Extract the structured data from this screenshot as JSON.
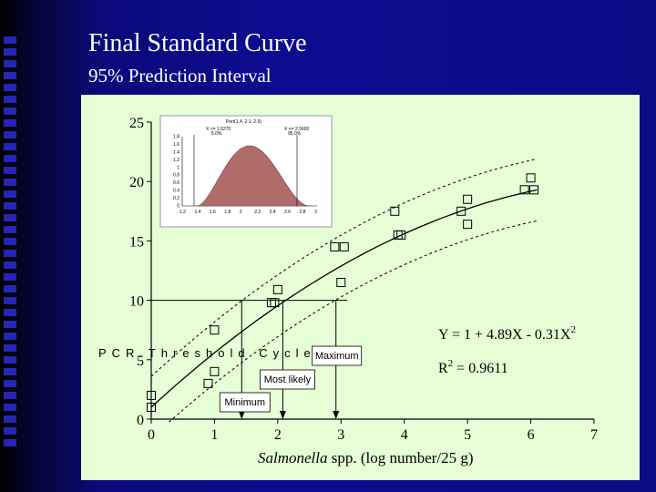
{
  "slide": {
    "title": "Final Standard Curve",
    "subtitle": "95% Prediction Interval"
  },
  "chart_data": {
    "type": "scatter",
    "x_ticks": [
      "0",
      "1",
      "2",
      "3",
      "4",
      "5",
      "6",
      "7"
    ],
    "y_ticks": [
      "0",
      "5",
      "10",
      "15",
      "20",
      "25"
    ],
    "xlim": [
      0,
      7
    ],
    "ylim": [
      0,
      25
    ],
    "xlabel_italic": "Salmonella",
    "xlabel_rest": " spp. (log number/25 g)",
    "ylabel": "PCR Threshold Cycle",
    "grid": false,
    "points": [
      [
        0,
        1
      ],
      [
        0,
        2
      ],
      [
        0.9,
        3
      ],
      [
        1.0,
        4
      ],
      [
        1.0,
        7.5
      ],
      [
        1.9,
        9.8
      ],
      [
        1.95,
        9.8
      ],
      [
        2.0,
        10.9
      ],
      [
        2.9,
        14.5
      ],
      [
        3.0,
        11.5
      ],
      [
        3.05,
        14.5
      ],
      [
        3.85,
        17.5
      ],
      [
        3.9,
        15.5
      ],
      [
        3.95,
        15.5
      ],
      [
        4.9,
        17.5
      ],
      [
        5.0,
        18.5
      ],
      [
        5.0,
        16.4
      ],
      [
        5.9,
        19.3
      ],
      [
        6.0,
        20.3
      ],
      [
        6.05,
        19.3
      ]
    ],
    "fit": {
      "a": 1,
      "b": 4.89,
      "c": -0.31
    },
    "equation_text": "Y = 1 + 4.89X - 0.31X",
    "equation_sup": "2",
    "r2_text_prefix": "R",
    "r2_sup": "2",
    "r2_text_value": " = 0.9611",
    "prediction": [
      {
        "label": "Minimum",
        "x": 1.43
      },
      {
        "label": "Most likely",
        "x": 2.08
      },
      {
        "label": "Maximum",
        "x": 2.92
      }
    ],
    "reference_y": 10,
    "inset": {
      "title": "Pert(1.4, 2.1, 2.9)",
      "left_value": "X <= 1.5270",
      "left_pct": "5.0%",
      "right_value": "X <= 2.5600",
      "right_pct": "95.0%",
      "y_ticks": [
        "0",
        "0.2",
        "0.4",
        "0.6",
        "0.8",
        "1",
        "1.2",
        "1.4",
        "1.6",
        "1.8"
      ],
      "x_ticks": [
        "1.2",
        "1.4",
        "1.6",
        "1.8",
        "2",
        "2.2",
        "2.4",
        "2.6",
        "2.8",
        "3"
      ],
      "curve_color": "#b06b6b"
    }
  }
}
